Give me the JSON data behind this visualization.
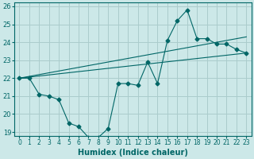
{
  "xlabel": "Humidex (Indice chaleur)",
  "background_color": "#cce8e8",
  "grid_color": "#aacccc",
  "line_color": "#006666",
  "xlim": [
    -0.5,
    23.5
  ],
  "ylim": [
    18.8,
    26.2
  ],
  "yticks": [
    19,
    20,
    21,
    22,
    23,
    24,
    25,
    26
  ],
  "xticks": [
    0,
    1,
    2,
    3,
    4,
    5,
    6,
    7,
    8,
    9,
    10,
    11,
    12,
    13,
    14,
    15,
    16,
    17,
    18,
    19,
    20,
    21,
    22,
    23
  ],
  "series_main": {
    "x": [
      0,
      1,
      2,
      3,
      4,
      5,
      6,
      7,
      8,
      9,
      10,
      11,
      12,
      13,
      14,
      15,
      16,
      17,
      18,
      19,
      20,
      21,
      22,
      23
    ],
    "y": [
      22.0,
      22.0,
      21.1,
      21.0,
      20.8,
      19.5,
      19.3,
      18.7,
      18.7,
      19.2,
      21.7,
      21.7,
      21.6,
      22.9,
      21.7,
      24.1,
      25.2,
      25.8,
      24.2,
      24.2,
      23.9,
      23.9,
      23.6,
      23.4
    ]
  },
  "series_trend1": {
    "x": [
      0,
      23
    ],
    "y": [
      22.0,
      24.3
    ]
  },
  "series_trend2": {
    "x": [
      0,
      23
    ],
    "y": [
      22.0,
      23.4
    ]
  }
}
